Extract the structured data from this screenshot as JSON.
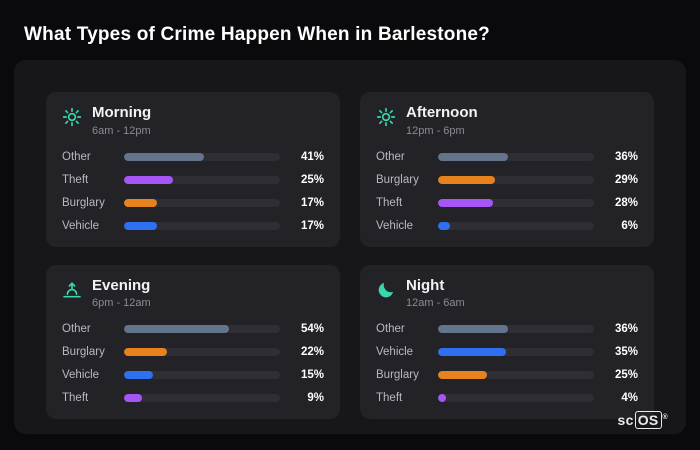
{
  "page": {
    "title": "What Types of Crime Happen When in Barlestone?"
  },
  "brand": {
    "prefix": "sc",
    "suffix": "OS",
    "reg": "®"
  },
  "colors": {
    "background": "#0a0a0c",
    "panel": "#17171a",
    "card": "#222227",
    "bar_track": "#2e2e34",
    "icon_accent": "#3ad6ae",
    "other": "#64748b",
    "theft": "#a855f7",
    "burglary": "#e8821e",
    "vehicle": "#2f6ff2"
  },
  "chart_data": [
    {
      "type": "bar",
      "title": "Morning",
      "subtitle": "6am - 12pm",
      "icon": "sun-icon",
      "categories": [
        "Other",
        "Theft",
        "Burglary",
        "Vehicle"
      ],
      "values": [
        41,
        25,
        17,
        17
      ],
      "value_suffix": "%",
      "bar_colors": [
        "#64748b",
        "#a855f7",
        "#e8821e",
        "#2f6ff2"
      ],
      "xlim": [
        0,
        80
      ],
      "legend": false,
      "grid": false
    },
    {
      "type": "bar",
      "title": "Afternoon",
      "subtitle": "12pm - 6pm",
      "icon": "sun-icon",
      "categories": [
        "Other",
        "Burglary",
        "Theft",
        "Vehicle"
      ],
      "values": [
        36,
        29,
        28,
        6
      ],
      "value_suffix": "%",
      "bar_colors": [
        "#64748b",
        "#e8821e",
        "#a855f7",
        "#2f6ff2"
      ],
      "xlim": [
        0,
        80
      ],
      "legend": false,
      "grid": false
    },
    {
      "type": "bar",
      "title": "Evening",
      "subtitle": "6pm - 12am",
      "icon": "sunset-icon",
      "categories": [
        "Other",
        "Burglary",
        "Vehicle",
        "Theft"
      ],
      "values": [
        54,
        22,
        15,
        9
      ],
      "value_suffix": "%",
      "bar_colors": [
        "#64748b",
        "#e8821e",
        "#2f6ff2",
        "#a855f7"
      ],
      "xlim": [
        0,
        80
      ],
      "legend": false,
      "grid": false
    },
    {
      "type": "bar",
      "title": "Night",
      "subtitle": "12am - 6am",
      "icon": "moon-icon",
      "categories": [
        "Other",
        "Vehicle",
        "Burglary",
        "Theft"
      ],
      "values": [
        36,
        35,
        25,
        4
      ],
      "value_suffix": "%",
      "bar_colors": [
        "#64748b",
        "#2f6ff2",
        "#e8821e",
        "#a855f7"
      ],
      "xlim": [
        0,
        80
      ],
      "legend": false,
      "grid": false
    }
  ]
}
